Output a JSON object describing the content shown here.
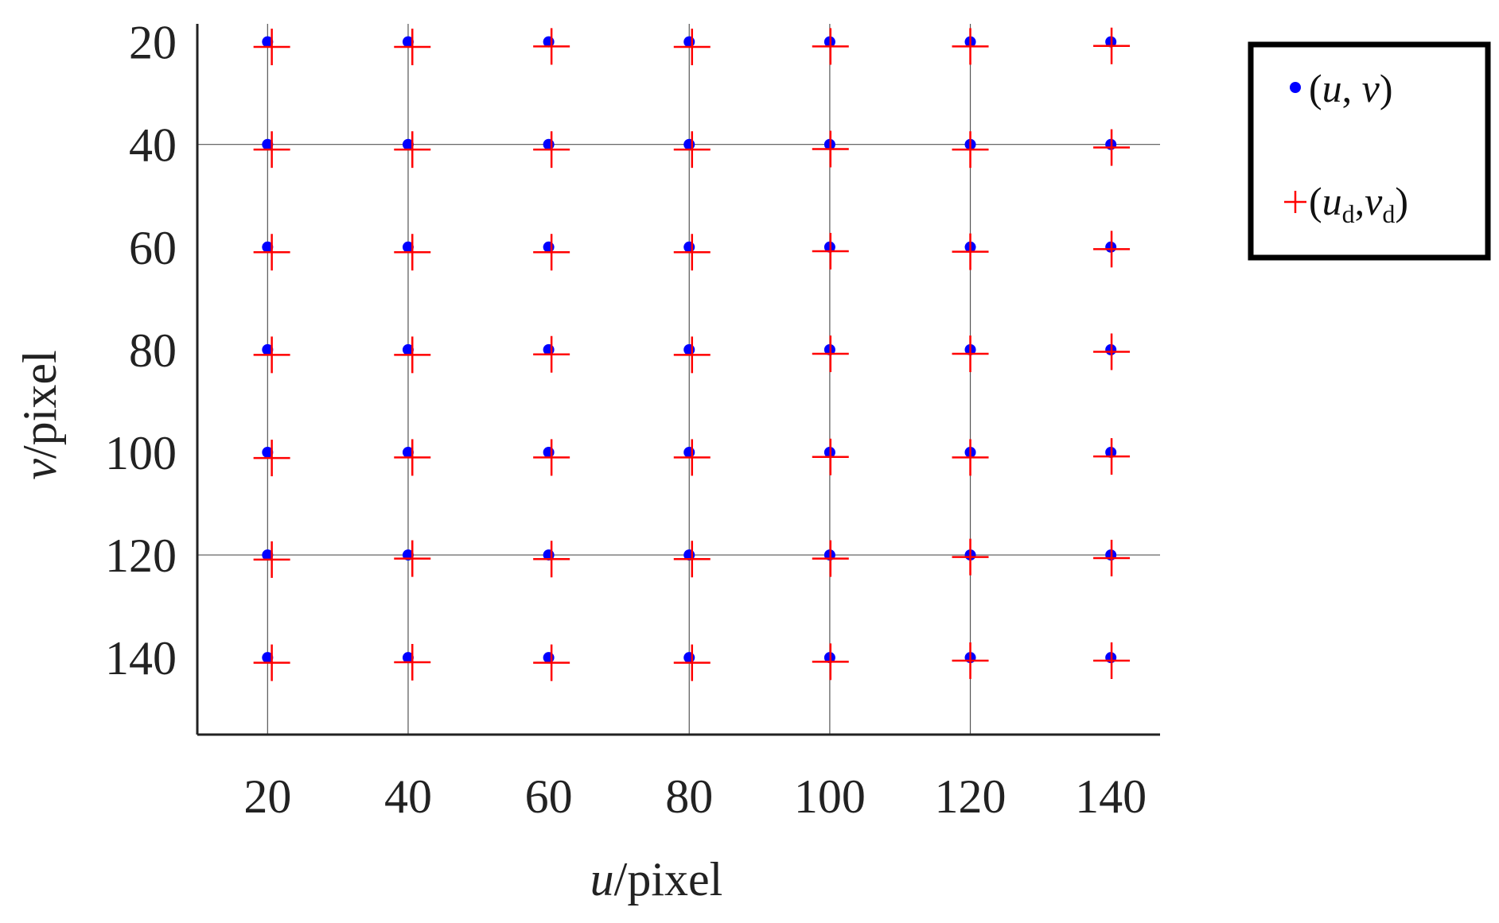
{
  "chart_data": {
    "type": "scatter",
    "xlabel": {
      "var": "u",
      "unit": "/pixel"
    },
    "ylabel": {
      "var": "v",
      "unit": "/pixel"
    },
    "xlim": [
      10,
      147
    ],
    "ylim": [
      155,
      16.5
    ],
    "y_reversed": true,
    "xticks": [
      20,
      40,
      60,
      80,
      100,
      120,
      140
    ],
    "yticks": [
      20,
      40,
      60,
      80,
      100,
      120,
      140
    ],
    "xtick_labels": [
      "20",
      "40",
      "60",
      "80",
      "100",
      "120",
      "140"
    ],
    "ytick_labels": [
      "20",
      "40",
      "60",
      "80",
      "100",
      "120",
      "140"
    ],
    "grid_vertical": [
      20,
      40,
      80,
      100,
      120
    ],
    "grid_horizontal": [
      40,
      120
    ],
    "legend_position": "outside-top-right",
    "series": [
      {
        "name": "(u, v)",
        "marker": "dot",
        "color": "#0000ff",
        "points": [
          [
            20,
            20
          ],
          [
            40,
            20
          ],
          [
            60,
            20
          ],
          [
            80,
            20
          ],
          [
            100,
            20
          ],
          [
            120,
            20
          ],
          [
            140,
            20
          ],
          [
            20,
            40
          ],
          [
            40,
            40
          ],
          [
            60,
            40
          ],
          [
            80,
            40
          ],
          [
            100,
            40
          ],
          [
            120,
            40
          ],
          [
            140,
            40
          ],
          [
            20,
            60
          ],
          [
            40,
            60
          ],
          [
            60,
            60
          ],
          [
            80,
            60
          ],
          [
            100,
            60
          ],
          [
            120,
            60
          ],
          [
            140,
            60
          ],
          [
            20,
            80
          ],
          [
            40,
            80
          ],
          [
            60,
            80
          ],
          [
            80,
            80
          ],
          [
            100,
            80
          ],
          [
            120,
            80
          ],
          [
            140,
            80
          ],
          [
            20,
            100
          ],
          [
            40,
            100
          ],
          [
            60,
            100
          ],
          [
            80,
            100
          ],
          [
            100,
            100
          ],
          [
            120,
            100
          ],
          [
            140,
            100
          ],
          [
            20,
            120
          ],
          [
            40,
            120
          ],
          [
            60,
            120
          ],
          [
            80,
            120
          ],
          [
            100,
            120
          ],
          [
            120,
            120
          ],
          [
            140,
            120
          ],
          [
            20,
            140
          ],
          [
            40,
            140
          ],
          [
            60,
            140
          ],
          [
            80,
            140
          ],
          [
            100,
            140
          ],
          [
            120,
            140
          ],
          [
            140,
            140
          ]
        ]
      },
      {
        "name": "(ud,vd)",
        "marker": "plus",
        "color": "#ff0000",
        "points": [
          [
            20.6,
            21.0
          ],
          [
            40.6,
            21.0
          ],
          [
            60.4,
            20.9
          ],
          [
            80.4,
            21.0
          ],
          [
            100.1,
            20.9
          ],
          [
            120.0,
            20.9
          ],
          [
            140.1,
            20.8
          ],
          [
            20.6,
            41.0
          ],
          [
            40.6,
            41.0
          ],
          [
            60.4,
            41.0
          ],
          [
            80.4,
            41.0
          ],
          [
            100.1,
            40.9
          ],
          [
            120.0,
            41.0
          ],
          [
            140.1,
            40.6
          ],
          [
            20.6,
            61.0
          ],
          [
            40.6,
            61.0
          ],
          [
            60.4,
            61.0
          ],
          [
            80.4,
            61.0
          ],
          [
            100.1,
            60.8
          ],
          [
            120.0,
            60.9
          ],
          [
            140.1,
            60.4
          ],
          [
            20.6,
            81.0
          ],
          [
            40.6,
            81.0
          ],
          [
            60.4,
            80.9
          ],
          [
            80.4,
            81.0
          ],
          [
            100.1,
            80.8
          ],
          [
            120.0,
            80.8
          ],
          [
            140.1,
            80.4
          ],
          [
            20.6,
            101.1
          ],
          [
            40.6,
            101.0
          ],
          [
            60.4,
            101.0
          ],
          [
            80.4,
            101.0
          ],
          [
            100.1,
            100.9
          ],
          [
            120.0,
            101.0
          ],
          [
            140.1,
            100.8
          ],
          [
            20.6,
            120.9
          ],
          [
            40.6,
            120.7
          ],
          [
            60.4,
            120.8
          ],
          [
            80.4,
            120.8
          ],
          [
            100.1,
            120.7
          ],
          [
            120.0,
            120.4
          ],
          [
            140.1,
            120.6
          ],
          [
            20.6,
            141.0
          ],
          [
            40.6,
            140.9
          ],
          [
            60.4,
            141.0
          ],
          [
            80.4,
            141.0
          ],
          [
            100.1,
            140.8
          ],
          [
            120.0,
            140.6
          ],
          [
            140.1,
            140.6
          ]
        ]
      }
    ]
  },
  "legend": {
    "entries": [
      {
        "marker": "dot",
        "color": "#0000ff",
        "u": "u",
        "v": "v",
        "sub": ""
      },
      {
        "marker": "plus",
        "color": "#ff0000",
        "u": "u",
        "v": "v",
        "sub": "d"
      }
    ]
  },
  "colors": {
    "axis": "#222222",
    "grid": "#555555",
    "legend_border": "#000000"
  }
}
